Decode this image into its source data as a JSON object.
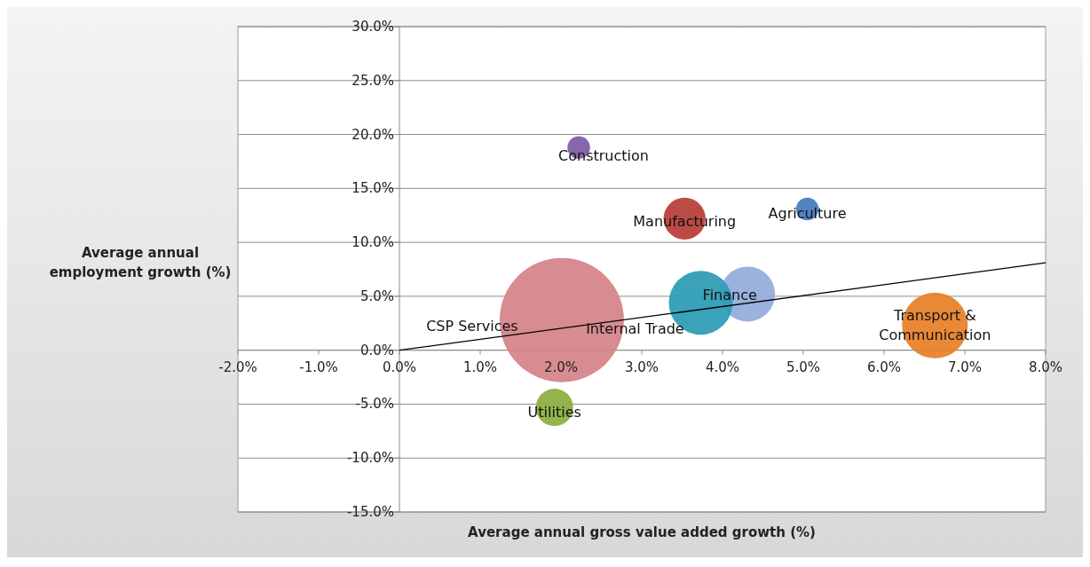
{
  "chart_data": {
    "type": "bubble",
    "xlabel": "Average annual gross value added growth (%)",
    "ylabel": "Average annual employment growth (%)",
    "xlim": [
      -2,
      8
    ],
    "ylim": [
      -15,
      30
    ],
    "xticks": [
      {
        "value": -2,
        "label": "-2.0%"
      },
      {
        "value": -1,
        "label": "-1.0%"
      },
      {
        "value": 0,
        "label": "0.0%"
      },
      {
        "value": 1,
        "label": "1.0%"
      },
      {
        "value": 2,
        "label": "2.0%"
      },
      {
        "value": 3,
        "label": "3.0%"
      },
      {
        "value": 4,
        "label": "4.0%"
      },
      {
        "value": 5,
        "label": "5.0%"
      },
      {
        "value": 6,
        "label": "6.0%"
      },
      {
        "value": 7,
        "label": "7.0%"
      },
      {
        "value": 8,
        "label": "8.0%"
      }
    ],
    "yticks": [
      {
        "value": -15,
        "label": "-15.0%"
      },
      {
        "value": -10,
        "label": "-10.0%"
      },
      {
        "value": -5,
        "label": "-5.0%"
      },
      {
        "value": 0,
        "label": "0.0%"
      },
      {
        "value": 5,
        "label": "5.0%"
      },
      {
        "value": 10,
        "label": "10.0%"
      },
      {
        "value": 15,
        "label": "15.0%"
      },
      {
        "value": 20,
        "label": "20.0%"
      },
      {
        "value": 25,
        "label": "25.0%"
      },
      {
        "value": 30,
        "label": "30.0%"
      }
    ],
    "grid": "y",
    "series": [
      {
        "name": "Agriculture",
        "color": "#4a7cc0",
        "x": [
          5.05
        ],
        "values": [
          13.1
        ],
        "sizes": [
          0.033
        ]
      },
      {
        "name": "Construction",
        "color": "#7f5fa6",
        "x": [
          2.22
        ],
        "values": [
          18.8
        ],
        "sizes": [
          0.033
        ]
      },
      {
        "name": "Manufacturing",
        "color": "#b8413c",
        "x": [
          3.53
        ],
        "values": [
          12.2
        ],
        "sizes": [
          0.114
        ]
      },
      {
        "name": "Finance",
        "color": "#95aedc",
        "x": [
          4.31
        ],
        "values": [
          5.2
        ],
        "sizes": [
          0.196
        ]
      },
      {
        "name": "Internal Trade",
        "color": "#2f9db5",
        "x": [
          3.73
        ],
        "values": [
          4.4
        ],
        "sizes": [
          0.264
        ]
      },
      {
        "name": "CSP Services",
        "color": "#d4868a",
        "x": [
          2.01
        ],
        "values": [
          2.8
        ],
        "sizes": [
          1
        ]
      },
      {
        "name": "Transport & Communication",
        "color": "#e8822c",
        "x": [
          6.63
        ],
        "values": [
          2.3
        ],
        "sizes": [
          0.28
        ]
      },
      {
        "name": "Utilities",
        "color": "#8db040",
        "x": [
          1.92
        ],
        "values": [
          -5.3
        ],
        "sizes": [
          0.09
        ]
      },
      {
        "type": "line",
        "color": "#000000",
        "x": [
          0,
          8
        ],
        "values": [
          0,
          8.1
        ]
      }
    ]
  }
}
